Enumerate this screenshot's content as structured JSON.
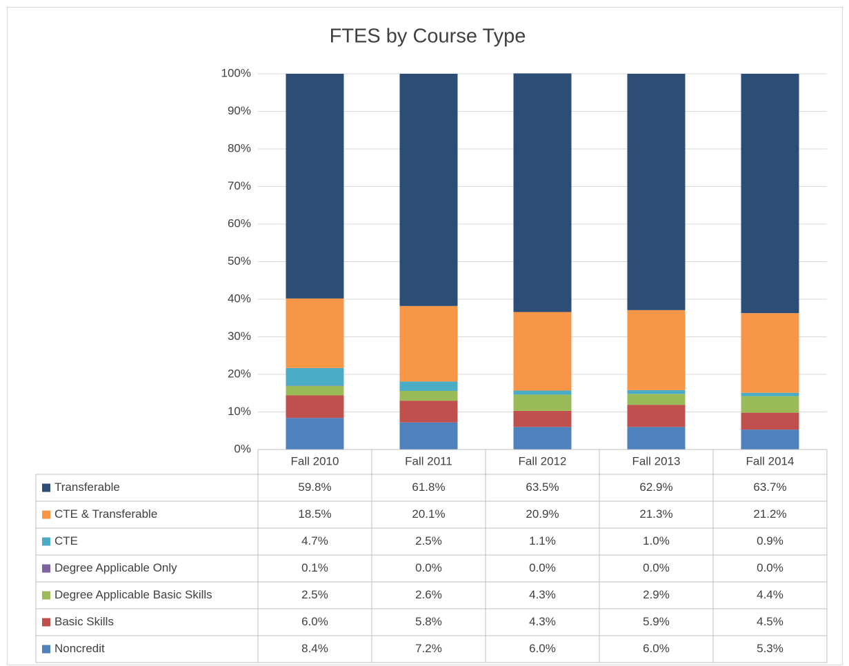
{
  "chart_data": {
    "type": "stacked_bar",
    "title": "FTES by Course Type",
    "categories": [
      "Fall 2010",
      "Fall 2011",
      "Fall 2012",
      "Fall 2013",
      "Fall 2014"
    ],
    "series": [
      {
        "name": "Transferable",
        "color": "#2c4d75",
        "values": [
          59.8,
          61.8,
          63.5,
          62.9,
          63.7
        ],
        "value_labels": [
          "59.8%",
          "61.8%",
          "63.5%",
          "62.9%",
          "63.7%"
        ]
      },
      {
        "name": "CTE & Transferable",
        "color": "#f79646",
        "values": [
          18.5,
          20.1,
          20.9,
          21.3,
          21.2
        ],
        "value_labels": [
          "18.5%",
          "20.1%",
          "20.9%",
          "21.3%",
          "21.2%"
        ]
      },
      {
        "name": "CTE",
        "color": "#4bacc6",
        "values": [
          4.7,
          2.5,
          1.1,
          1.0,
          0.9
        ],
        "value_labels": [
          "4.7%",
          "2.5%",
          "1.1%",
          "1.0%",
          "0.9%"
        ]
      },
      {
        "name": "Degree Applicable Only",
        "color": "#8064a2",
        "values": [
          0.1,
          0.0,
          0.0,
          0.0,
          0.0
        ],
        "value_labels": [
          "0.1%",
          "0.0%",
          "0.0%",
          "0.0%",
          "0.0%"
        ]
      },
      {
        "name": "Degree Applicable Basic Skills",
        "color": "#9bbb59",
        "values": [
          2.5,
          2.6,
          4.3,
          2.9,
          4.4
        ],
        "value_labels": [
          "2.5%",
          "2.6%",
          "4.3%",
          "2.9%",
          "4.4%"
        ]
      },
      {
        "name": "Basic Skills",
        "color": "#c0504d",
        "values": [
          6.0,
          5.8,
          4.3,
          5.9,
          4.5
        ],
        "value_labels": [
          "6.0%",
          "5.8%",
          "4.3%",
          "5.9%",
          "4.5%"
        ]
      },
      {
        "name": "Noncredit",
        "color": "#4f81bd",
        "values": [
          8.4,
          7.2,
          6.0,
          6.0,
          5.3
        ],
        "value_labels": [
          "8.4%",
          "7.2%",
          "6.0%",
          "6.0%",
          "5.3%"
        ]
      }
    ],
    "ylim": [
      0,
      100
    ],
    "yticks": [
      {
        "value": 0,
        "label": "0%"
      },
      {
        "value": 10,
        "label": "10%"
      },
      {
        "value": 20,
        "label": "20%"
      },
      {
        "value": 30,
        "label": "30%"
      },
      {
        "value": 40,
        "label": "40%"
      },
      {
        "value": 50,
        "label": "50%"
      },
      {
        "value": 60,
        "label": "60%"
      },
      {
        "value": 70,
        "label": "70%"
      },
      {
        "value": 80,
        "label": "80%"
      },
      {
        "value": 90,
        "label": "90%"
      },
      {
        "value": 100,
        "label": "100%"
      }
    ],
    "grid": true
  }
}
